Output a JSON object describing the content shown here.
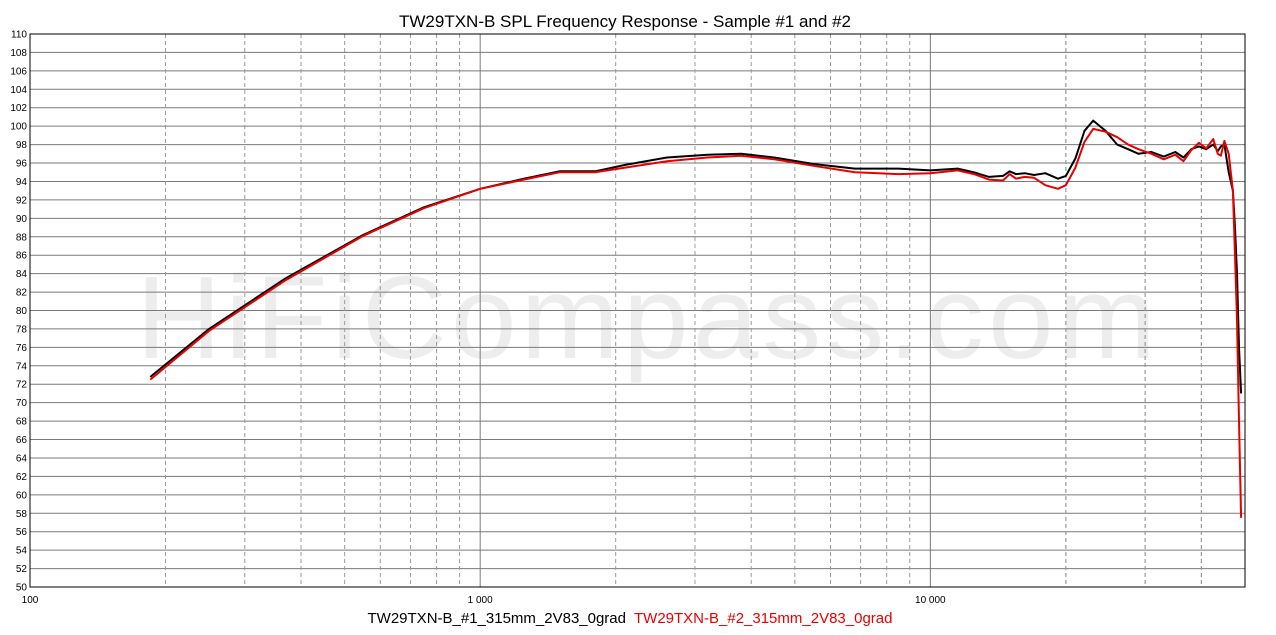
{
  "chart_data": {
    "type": "line",
    "title": "TW29TXN-B SPL Frequency Response - Sample #1 and #2",
    "watermark": "HiFiCompass.com",
    "x_scale": "log",
    "xlim": [
      100,
      50000
    ],
    "ylim": [
      50,
      110
    ],
    "y_ticks": [
      50,
      52,
      54,
      56,
      58,
      60,
      62,
      64,
      66,
      68,
      70,
      72,
      74,
      76,
      78,
      80,
      82,
      84,
      86,
      88,
      90,
      92,
      94,
      96,
      98,
      100,
      102,
      104,
      106,
      108,
      110
    ],
    "x_tick_labels": [
      {
        "value": 100,
        "label": "100"
      },
      {
        "value": 1000,
        "label": "1 000"
      },
      {
        "value": 10000,
        "label": "10 000"
      }
    ],
    "grid": true,
    "legend_position": "bottom",
    "series": [
      {
        "name": "TW29TXN-B_#1_315mm_2V83_0grad",
        "color": "#000000",
        "x": [
          185,
          250,
          370,
          550,
          750,
          1000,
          1250,
          1500,
          1800,
          2100,
          2600,
          3200,
          3800,
          4500,
          5500,
          6800,
          8500,
          10000,
          11500,
          12500,
          13500,
          14500,
          15000,
          15500,
          16200,
          17000,
          18000,
          19200,
          20000,
          21000,
          22000,
          23000,
          24500,
          26000,
          27500,
          29000,
          31000,
          33000,
          35000,
          36500,
          38000,
          39500,
          41000,
          42500,
          43500,
          44200,
          45000,
          46000,
          47000,
          47500,
          48000,
          48500,
          49000
        ],
        "y": [
          72.8,
          78.0,
          83.5,
          88.2,
          91.2,
          93.2,
          94.3,
          95.1,
          95.1,
          95.8,
          96.6,
          96.9,
          97.0,
          96.6,
          95.9,
          95.4,
          95.4,
          95.2,
          95.4,
          95.0,
          94.5,
          94.6,
          95.1,
          94.8,
          94.9,
          94.7,
          94.9,
          94.3,
          94.6,
          96.5,
          99.5,
          100.6,
          99.5,
          98.0,
          97.5,
          97.0,
          97.2,
          96.7,
          97.2,
          96.6,
          97.5,
          97.8,
          97.5,
          98.0,
          97.3,
          97.8,
          98.0,
          95.0,
          93.0,
          89.0,
          84.0,
          76.0,
          71.0
        ]
      },
      {
        "name": "TW29TXN-B_#2_315mm_2V83_0grad",
        "color": "#e80000",
        "x": [
          185,
          250,
          370,
          550,
          750,
          1000,
          1250,
          1500,
          1800,
          2100,
          2600,
          3200,
          3800,
          4500,
          5500,
          6800,
          8500,
          10000,
          11500,
          12500,
          13500,
          14500,
          15000,
          15500,
          16200,
          17000,
          18000,
          19200,
          20000,
          21000,
          22000,
          23000,
          24500,
          26000,
          27500,
          29000,
          31000,
          33000,
          35000,
          36500,
          38000,
          39500,
          41000,
          42500,
          43500,
          44200,
          45000,
          46000,
          47000,
          47500,
          48000,
          48500,
          49000
        ],
        "y": [
          72.5,
          77.8,
          83.3,
          88.1,
          91.1,
          93.2,
          94.2,
          95.0,
          95.0,
          95.5,
          96.2,
          96.6,
          96.8,
          96.4,
          95.7,
          95.0,
          94.8,
          94.9,
          95.2,
          94.8,
          94.2,
          94.1,
          94.8,
          94.3,
          94.5,
          94.4,
          93.6,
          93.2,
          93.6,
          95.5,
          98.3,
          99.7,
          99.4,
          98.8,
          98.0,
          97.5,
          97.0,
          96.4,
          96.9,
          96.2,
          97.4,
          98.2,
          97.6,
          98.6,
          97.0,
          96.8,
          98.4,
          97.0,
          93.0,
          86.0,
          79.0,
          68.0,
          57.5
        ]
      }
    ]
  }
}
